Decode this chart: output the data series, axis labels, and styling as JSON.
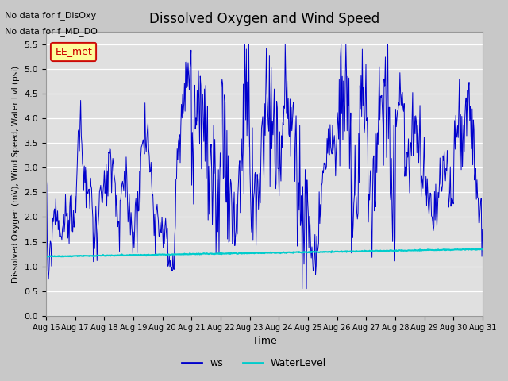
{
  "title": "Dissolved Oxygen and Wind Speed",
  "xlabel": "Time",
  "ylabel": "Dissolved Oxygen (mV), Wind Speed, Water Lvl (psi)",
  "ylim": [
    0.0,
    5.75
  ],
  "yticks": [
    0.0,
    0.5,
    1.0,
    1.5,
    2.0,
    2.5,
    3.0,
    3.5,
    4.0,
    4.5,
    5.0,
    5.5
  ],
  "fig_bg_color": "#c8c8c8",
  "plot_bg_color": "#e0e0e0",
  "ws_color": "#0000cc",
  "water_color": "#00cccc",
  "ws_label": "ws",
  "water_label": "WaterLevel",
  "annotations": [
    "No data for f_DisOxy",
    "No data for f_MD_DO"
  ],
  "legend_label": "EE_met",
  "legend_box_color": "#ffff99",
  "legend_border_color": "#cc0000",
  "x_tick_labels": [
    "Aug 16",
    "Aug 17",
    "Aug 18",
    "Aug 19",
    "Aug 20",
    "Aug 21",
    "Aug 22",
    "Aug 23",
    "Aug 24",
    "Aug 25",
    "Aug 26",
    "Aug 27",
    "Aug 28",
    "Aug 29",
    "Aug 30",
    "Aug 31"
  ]
}
